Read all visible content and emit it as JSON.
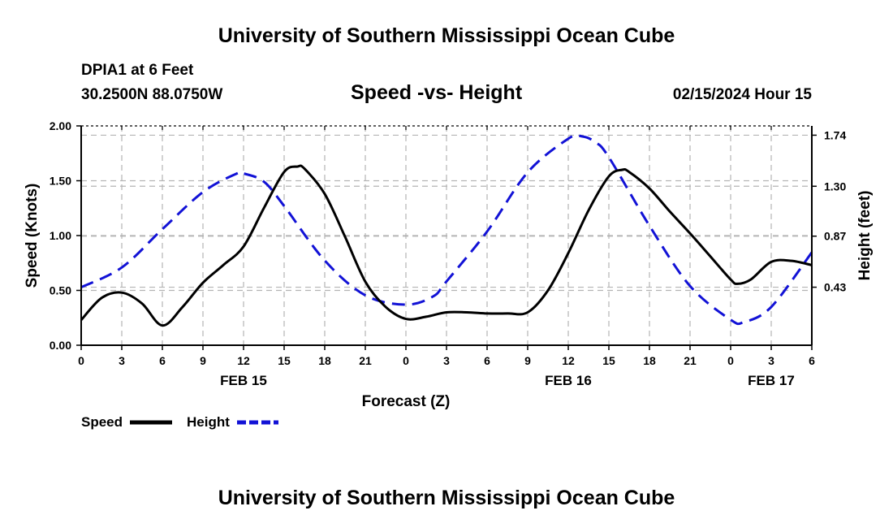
{
  "header": {
    "title": "University of Southern Mississippi Ocean Cube",
    "station": "DPIA1 at 6 Feet",
    "coordinates": "30.2500N  88.0750W",
    "subtitle": "Speed -vs- Height",
    "datetime": "02/15/2024 Hour 15"
  },
  "footer": {
    "title": "University of Southern Mississippi Ocean Cube"
  },
  "chart_data": {
    "type": "line",
    "title": "Speed -vs- Height",
    "xlabel": "Forecast (Z)",
    "ylabel": "Speed (Knots)",
    "y2label": "Height (feet)",
    "x_range": [
      0,
      54
    ],
    "x_ticks": [
      {
        "x": 0,
        "label": "0"
      },
      {
        "x": 3,
        "label": "3"
      },
      {
        "x": 6,
        "label": "6"
      },
      {
        "x": 9,
        "label": "9"
      },
      {
        "x": 12,
        "label": "12"
      },
      {
        "x": 15,
        "label": "15"
      },
      {
        "x": 18,
        "label": "18"
      },
      {
        "x": 21,
        "label": "21"
      },
      {
        "x": 24,
        "label": "0"
      },
      {
        "x": 27,
        "label": "3"
      },
      {
        "x": 30,
        "label": "6"
      },
      {
        "x": 33,
        "label": "9"
      },
      {
        "x": 36,
        "label": "12"
      },
      {
        "x": 39,
        "label": "15"
      },
      {
        "x": 42,
        "label": "18"
      },
      {
        "x": 45,
        "label": "21"
      },
      {
        "x": 48,
        "label": "0"
      },
      {
        "x": 51,
        "label": "3"
      },
      {
        "x": 54,
        "label": "6"
      }
    ],
    "date_labels": [
      {
        "x": 12,
        "label": "FEB 15"
      },
      {
        "x": 36,
        "label": "FEB 16"
      },
      {
        "x": 51,
        "label": "FEB 17"
      }
    ],
    "y_range": [
      0,
      2.0
    ],
    "y_ticks": [
      {
        "value": 0.0,
        "label": "0.00"
      },
      {
        "value": 0.5,
        "label": "0.50"
      },
      {
        "value": 1.0,
        "label": "1.00"
      },
      {
        "value": 1.5,
        "label": "1.50"
      },
      {
        "value": 2.0,
        "label": "2.00"
      }
    ],
    "y2_range": [
      -0.07,
      1.82
    ],
    "y2_ticks": [
      {
        "value": 0.43,
        "label": "0.43"
      },
      {
        "value": 0.87,
        "label": "0.87"
      },
      {
        "value": 1.3,
        "label": "1.30"
      },
      {
        "value": 1.74,
        "label": "1.74"
      }
    ],
    "grid": true,
    "series": [
      {
        "name": "Speed",
        "axis": "left",
        "color": "#000000",
        "dash": "solid",
        "x": [
          0,
          1.5,
          3,
          4.5,
          6,
          7.5,
          9,
          10.5,
          12,
          13.5,
          15,
          16,
          16.5,
          18,
          19.5,
          21,
          22.5,
          24,
          25.5,
          27,
          28.5,
          30,
          31.5,
          33,
          34.5,
          36,
          37.5,
          39,
          40,
          40.5,
          42,
          43.5,
          45,
          46.5,
          48,
          48.5,
          49.5,
          51,
          52.5,
          54
        ],
        "values": [
          0.23,
          0.43,
          0.48,
          0.38,
          0.18,
          0.35,
          0.57,
          0.73,
          0.9,
          1.25,
          1.58,
          1.63,
          1.61,
          1.38,
          0.99,
          0.58,
          0.35,
          0.24,
          0.26,
          0.3,
          0.3,
          0.29,
          0.29,
          0.3,
          0.5,
          0.84,
          1.23,
          1.54,
          1.6,
          1.58,
          1.43,
          1.22,
          1.02,
          0.81,
          0.6,
          0.56,
          0.6,
          0.76,
          0.77,
          0.73
        ]
      },
      {
        "name": "Height",
        "axis": "right",
        "color": "#1212d6",
        "dash": "dashed",
        "x": [
          0,
          3,
          6,
          9,
          11.5,
          12,
          13.5,
          15,
          18,
          21,
          24,
          26,
          27,
          30,
          33,
          36,
          37,
          38,
          39,
          42,
          45,
          48,
          49,
          51,
          54
        ],
        "values": [
          0.43,
          0.6,
          0.93,
          1.25,
          1.41,
          1.41,
          1.34,
          1.13,
          0.66,
          0.36,
          0.28,
          0.35,
          0.48,
          0.91,
          1.42,
          1.71,
          1.73,
          1.68,
          1.55,
          0.96,
          0.44,
          0.15,
          0.13,
          0.26,
          0.73
        ]
      }
    ],
    "legend": [
      {
        "name": "Speed",
        "color": "#000000",
        "dash": "solid"
      },
      {
        "name": "Height",
        "color": "#1212d6",
        "dash": "dashed"
      }
    ],
    "legend_position": "bottom-left"
  }
}
